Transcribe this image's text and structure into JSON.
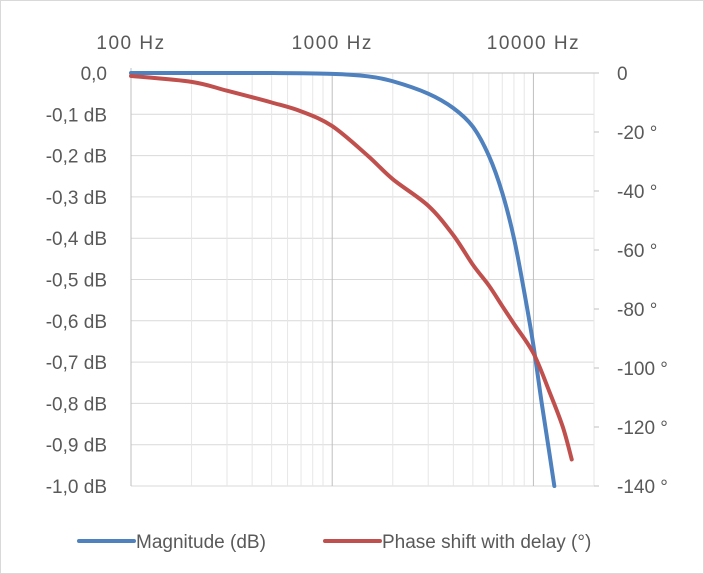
{
  "chart_data": {
    "type": "line",
    "x_scale": "log",
    "xlim": [
      100,
      20000
    ],
    "x_ticks": [
      {
        "value": 100,
        "label": "100 Hz"
      },
      {
        "value": 1000,
        "label": "1000 Hz"
      },
      {
        "value": 10000,
        "label": "10000 Hz"
      }
    ],
    "y_left": {
      "lim": [
        -1.0,
        0.0
      ],
      "ticks": [
        {
          "value": 0.0,
          "label": "0,0"
        },
        {
          "value": -0.1,
          "label": "-0,1 dB"
        },
        {
          "value": -0.2,
          "label": "-0,2 dB"
        },
        {
          "value": -0.3,
          "label": "-0,3 dB"
        },
        {
          "value": -0.4,
          "label": "-0,4 dB"
        },
        {
          "value": -0.5,
          "label": "-0,5 dB"
        },
        {
          "value": -0.6,
          "label": "-0,6 dB"
        },
        {
          "value": -0.7,
          "label": "-0,7 dB"
        },
        {
          "value": -0.8,
          "label": "-0,8 dB"
        },
        {
          "value": -0.9,
          "label": "-0,9 dB"
        },
        {
          "value": -1.0,
          "label": "-1,0 dB"
        }
      ]
    },
    "y_right": {
      "lim": [
        -140,
        0
      ],
      "ticks": [
        {
          "value": 0,
          "label": "0"
        },
        {
          "value": -20,
          "label": "-20 °"
        },
        {
          "value": -40,
          "label": "-40 °"
        },
        {
          "value": -60,
          "label": "-60 °"
        },
        {
          "value": -80,
          "label": "-80 °"
        },
        {
          "value": -100,
          "label": "-100 °"
        },
        {
          "value": -120,
          "label": "-120 °"
        },
        {
          "value": -140,
          "label": "-140 °"
        }
      ]
    },
    "grid": true,
    "legend_position": "bottom",
    "series": [
      {
        "name": "Magnitude (dB)",
        "axis": "left",
        "color": "#4E81BD",
        "points": [
          [
            100,
            0.0
          ],
          [
            200,
            0.0
          ],
          [
            500,
            0.0
          ],
          [
            1000,
            -0.002
          ],
          [
            1500,
            -0.008
          ],
          [
            2000,
            -0.02
          ],
          [
            3000,
            -0.05
          ],
          [
            4000,
            -0.085
          ],
          [
            5000,
            -0.13
          ],
          [
            6000,
            -0.2
          ],
          [
            7000,
            -0.29
          ],
          [
            8000,
            -0.4
          ],
          [
            9000,
            -0.53
          ],
          [
            10000,
            -0.66
          ],
          [
            11000,
            -0.8
          ],
          [
            12000,
            -0.92
          ],
          [
            12700,
            -1.0
          ]
        ]
      },
      {
        "name": "Phase shift with delay (°)",
        "axis": "right",
        "color": "#C0504D",
        "points": [
          [
            100,
            -1
          ],
          [
            200,
            -3
          ],
          [
            300,
            -6
          ],
          [
            500,
            -10
          ],
          [
            700,
            -13
          ],
          [
            1000,
            -18
          ],
          [
            1500,
            -28
          ],
          [
            2000,
            -36
          ],
          [
            3000,
            -45
          ],
          [
            4000,
            -55
          ],
          [
            5000,
            -65
          ],
          [
            6000,
            -72
          ],
          [
            7000,
            -79
          ],
          [
            8000,
            -85
          ],
          [
            10000,
            -95
          ],
          [
            12000,
            -108
          ],
          [
            14000,
            -120
          ],
          [
            15500,
            -131
          ]
        ]
      }
    ]
  }
}
